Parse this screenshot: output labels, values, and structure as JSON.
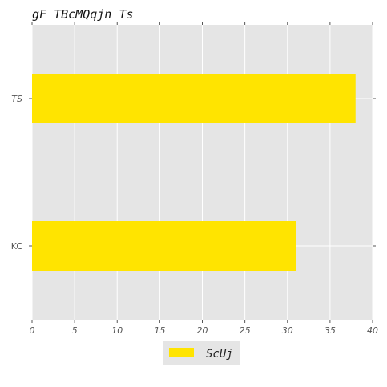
{
  "chart_data": {
    "type": "bar",
    "orientation": "horizontal",
    "title": "gF TBcMQqjn Ts",
    "xlabel": "",
    "ylabel": "",
    "categories": [
      "TS",
      "KC"
    ],
    "series": [
      {
        "name": "ScUj",
        "values": [
          38,
          31
        ],
        "color": "#FFE400"
      }
    ],
    "xlim": [
      0,
      40
    ],
    "xticks": [
      "0",
      "5",
      "10",
      "15",
      "20",
      "25",
      "30",
      "35",
      "40"
    ],
    "grid": true,
    "legend_position": "bottom-center",
    "plot_background": "#E5E5E5",
    "grid_color": "#FFFFFF"
  }
}
